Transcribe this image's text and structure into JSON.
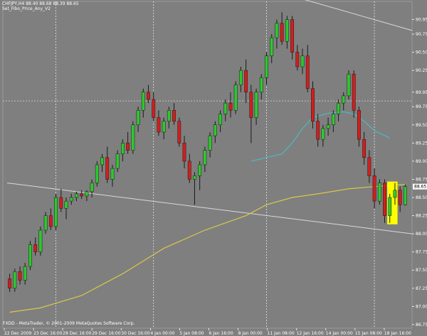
{
  "header": {
    "symbol_line": "CHFJPY,H4  88.40 88.68 88.39 88.65",
    "indicator_name": "Set_Fibo_Price_Any_V2"
  },
  "footer": {
    "copyright": "FXDD - MetaTrader, © 2001-2009 MetaQuotes Software Corp."
  },
  "price_axis": {
    "labels": [
      "90.95",
      "90.75",
      "90.50",
      "90.25",
      "89.95",
      "89.75",
      "89.50",
      "89.25",
      "89.00",
      "88.75",
      "88.50",
      "88.25",
      "88.00",
      "87.75",
      "87.50",
      "87.25",
      "87.00",
      "86.75"
    ],
    "current_price": "88.65"
  },
  "time_axis": {
    "labels": [
      "22 Dec 2009",
      "23 Dec 16:00",
      "28 Dec 16:00",
      "29 Dec 16:00",
      "30 Dec 16:00",
      "4 Jan 00:00",
      "5 Jan 08:00",
      "6 Jan 16:00",
      "8 Jan 00:00",
      "11 Jan 08:00",
      "12 Jan 16:00",
      "14 Jan 00:00",
      "15 Jan 08:00",
      "18 Jan 16:00"
    ]
  },
  "colors": {
    "background": "#7f7f7f",
    "bull_candle": "#2ec82e",
    "bear_candle": "#d21e1e",
    "wick": "#1a1a1a",
    "ma_fast": "#4fb8c0",
    "ma_slow": "#d8c84a",
    "channel": "#d9d9d9",
    "highlight": "#ffff00",
    "axis_text": "#ffffff"
  },
  "chart_data": {
    "type": "candlestick",
    "candles": [
      [
        87.38,
        87.45,
        87.2,
        87.25
      ],
      [
        87.25,
        87.52,
        87.2,
        87.48
      ],
      [
        87.48,
        87.55,
        87.3,
        87.36
      ],
      [
        87.36,
        87.6,
        87.3,
        87.55
      ],
      [
        87.55,
        87.9,
        87.5,
        87.85
      ],
      [
        87.85,
        87.95,
        87.7,
        87.75
      ],
      [
        87.75,
        88.1,
        87.7,
        88.05
      ],
      [
        88.05,
        88.3,
        88.0,
        88.25
      ],
      [
        88.25,
        88.35,
        88.05,
        88.1
      ],
      [
        88.1,
        88.55,
        88.05,
        88.5
      ],
      [
        88.5,
        88.62,
        88.3,
        88.35
      ],
      [
        88.35,
        88.5,
        88.2,
        88.45
      ],
      [
        88.45,
        88.55,
        88.4,
        88.5
      ],
      [
        88.5,
        88.58,
        88.45,
        88.55
      ],
      [
        88.55,
        88.6,
        88.48,
        88.52
      ],
      [
        88.52,
        88.6,
        88.45,
        88.58
      ],
      [
        88.58,
        88.75,
        88.5,
        88.7
      ],
      [
        88.7,
        89.0,
        88.65,
        88.95
      ],
      [
        88.95,
        89.1,
        88.85,
        89.05
      ],
      [
        89.05,
        89.2,
        88.7,
        88.75
      ],
      [
        88.75,
        88.95,
        88.65,
        88.9
      ],
      [
        88.9,
        89.15,
        88.85,
        89.1
      ],
      [
        89.1,
        89.3,
        89.0,
        89.25
      ],
      [
        89.25,
        89.4,
        89.1,
        89.15
      ],
      [
        89.15,
        89.55,
        89.1,
        89.5
      ],
      [
        89.5,
        89.75,
        89.4,
        89.7
      ],
      [
        89.7,
        90.0,
        89.6,
        89.95
      ],
      [
        89.95,
        90.05,
        89.8,
        89.85
      ],
      [
        89.85,
        89.95,
        89.55,
        89.6
      ],
      [
        89.6,
        89.7,
        89.35,
        89.4
      ],
      [
        89.4,
        89.6,
        89.3,
        89.55
      ],
      [
        89.55,
        89.75,
        89.45,
        89.7
      ],
      [
        89.7,
        89.8,
        89.5,
        89.55
      ],
      [
        89.55,
        89.6,
        89.2,
        89.25
      ],
      [
        89.25,
        89.35,
        88.9,
        89.0
      ],
      [
        89.0,
        89.1,
        88.7,
        88.75
      ],
      [
        88.75,
        88.85,
        88.4,
        88.8
      ],
      [
        88.8,
        89.0,
        88.6,
        88.95
      ],
      [
        88.95,
        89.2,
        88.85,
        89.15
      ],
      [
        89.15,
        89.4,
        89.05,
        89.35
      ],
      [
        89.35,
        89.55,
        89.25,
        89.5
      ],
      [
        89.5,
        89.7,
        89.4,
        89.65
      ],
      [
        89.65,
        89.85,
        89.55,
        89.8
      ],
      [
        89.8,
        89.95,
        89.6,
        89.7
      ],
      [
        89.7,
        90.1,
        89.65,
        90.05
      ],
      [
        90.05,
        90.3,
        89.95,
        90.25
      ],
      [
        90.25,
        90.4,
        89.8,
        89.95
      ],
      [
        89.95,
        90.05,
        89.25,
        89.6
      ],
      [
        89.6,
        90.0,
        89.5,
        89.95
      ],
      [
        89.95,
        90.2,
        89.85,
        90.15
      ],
      [
        90.15,
        90.5,
        90.05,
        90.45
      ],
      [
        90.45,
        90.75,
        90.35,
        90.7
      ],
      [
        90.7,
        90.95,
        90.55,
        90.9
      ],
      [
        90.9,
        91.05,
        90.6,
        90.65
      ],
      [
        90.65,
        91.0,
        90.55,
        90.95
      ],
      [
        90.95,
        91.0,
        90.4,
        90.5
      ],
      [
        90.5,
        90.6,
        90.25,
        90.3
      ],
      [
        90.3,
        90.55,
        90.2,
        90.45
      ],
      [
        90.45,
        90.6,
        89.95,
        90.0
      ],
      [
        90.0,
        90.1,
        89.45,
        89.55
      ],
      [
        89.55,
        89.65,
        89.2,
        89.3
      ],
      [
        89.3,
        89.5,
        89.2,
        89.45
      ],
      [
        89.45,
        89.6,
        89.35,
        89.5
      ],
      [
        89.5,
        89.7,
        89.4,
        89.65
      ],
      [
        89.65,
        89.85,
        89.55,
        89.8
      ],
      [
        89.8,
        89.95,
        89.7,
        89.9
      ],
      [
        89.9,
        90.25,
        89.85,
        90.2
      ],
      [
        90.2,
        90.25,
        89.6,
        89.7
      ],
      [
        89.7,
        89.75,
        89.2,
        89.3
      ],
      [
        89.3,
        89.4,
        88.95,
        89.05
      ],
      [
        89.05,
        89.15,
        88.7,
        88.8
      ],
      [
        88.8,
        88.9,
        88.35,
        88.45
      ],
      [
        88.45,
        88.75,
        88.4,
        88.7
      ],
      [
        88.7,
        88.75,
        88.15,
        88.25
      ],
      [
        88.25,
        88.55,
        88.15,
        88.5
      ],
      [
        88.5,
        88.7,
        88.4,
        88.6
      ],
      [
        88.6,
        88.65,
        88.3,
        88.4
      ],
      [
        88.4,
        88.68,
        88.39,
        88.65
      ]
    ],
    "highlight_candles": [
      74,
      75
    ],
    "ma_fast": [
      [
        47,
        89.0
      ],
      [
        50,
        89.05
      ],
      [
        53,
        89.1
      ],
      [
        55,
        89.25
      ],
      [
        57,
        89.45
      ],
      [
        59,
        89.6
      ],
      [
        62,
        89.66
      ],
      [
        65,
        89.68
      ],
      [
        67,
        89.65
      ],
      [
        69,
        89.55
      ],
      [
        71,
        89.42
      ],
      [
        74,
        89.32
      ]
    ],
    "ma_slow": [
      [
        0,
        86.92
      ],
      [
        6,
        86.98
      ],
      [
        14,
        87.15
      ],
      [
        22,
        87.45
      ],
      [
        30,
        87.8
      ],
      [
        38,
        88.05
      ],
      [
        46,
        88.25
      ],
      [
        50,
        88.4
      ],
      [
        55,
        88.5
      ],
      [
        60,
        88.55
      ],
      [
        66,
        88.62
      ],
      [
        71,
        88.65
      ],
      [
        77,
        88.68
      ]
    ],
    "channel_upper": [
      [
        0,
        92.4
      ],
      [
        77,
        90.8
      ]
    ],
    "channel_lower": [
      [
        0,
        88.7
      ],
      [
        77,
        88.0
      ]
    ],
    "vgrid_candle_positions": [
      9,
      28,
      50,
      71
    ],
    "hgrid_level": 89.83,
    "ylim": [
      86.7,
      91.2
    ],
    "type_hint": "ohlc price chart"
  }
}
